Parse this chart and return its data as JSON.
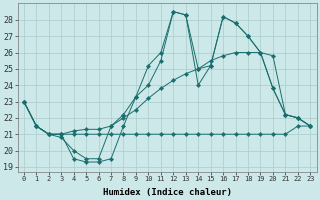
{
  "title": "",
  "xlabel": "Humidex (Indice chaleur)",
  "ylabel": "",
  "background_color": "#cce8e8",
  "grid_color": "#aacccc",
  "line_color": "#1a6e6e",
  "xlim": [
    -0.5,
    23.5
  ],
  "ylim": [
    18.7,
    29.0
  ],
  "yticks": [
    19,
    20,
    21,
    22,
    23,
    24,
    25,
    26,
    27,
    28
  ],
  "xticks": [
    0,
    1,
    2,
    3,
    4,
    5,
    6,
    7,
    8,
    9,
    10,
    11,
    12,
    13,
    14,
    15,
    16,
    17,
    18,
    19,
    20,
    21,
    22,
    23
  ],
  "s1": [
    23,
    21.5,
    21,
    21,
    19.5,
    19.3,
    19.3,
    19.5,
    21.5,
    23.3,
    25.2,
    26.0,
    28.5,
    28.3,
    25.0,
    25.2,
    28.2,
    27.8,
    27.0,
    26.0,
    25.8,
    22.2,
    22.0,
    21.5
  ],
  "s2": [
    23,
    21.5,
    21,
    20.8,
    20.0,
    19.5,
    19.5,
    21.5,
    22.2,
    23.3,
    24.0,
    25.5,
    28.5,
    28.3,
    24.0,
    25.2,
    28.2,
    27.8,
    27.0,
    26.0,
    23.8,
    22.2,
    22.0,
    21.5
  ],
  "s3": [
    23,
    21.5,
    21,
    21,
    21,
    21,
    21,
    21,
    21,
    21,
    21,
    21,
    21,
    21,
    21,
    21,
    21,
    21,
    21,
    21,
    21,
    21,
    21.5,
    21.5
  ],
  "s4": [
    23,
    21.5,
    21,
    21,
    21.2,
    21.3,
    21.3,
    21.5,
    22.0,
    22.5,
    23.2,
    23.8,
    24.3,
    24.7,
    25.0,
    25.5,
    25.8,
    26.0,
    26.0,
    26.0,
    23.8,
    22.2,
    22.0,
    21.5
  ]
}
